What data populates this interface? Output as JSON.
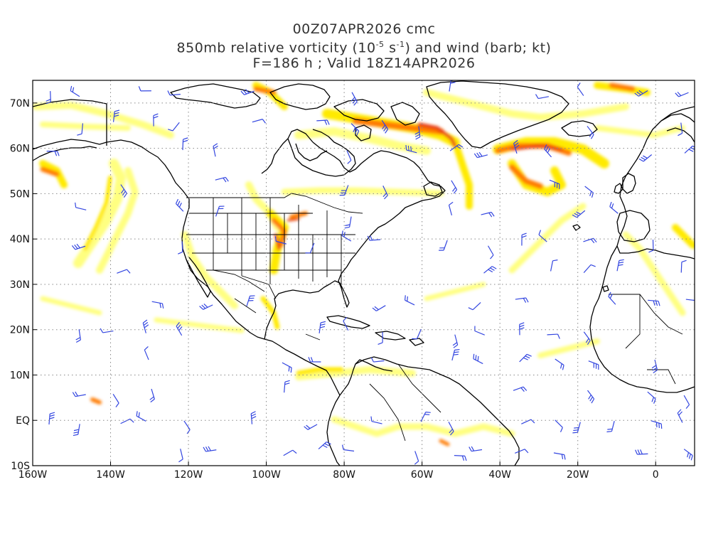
{
  "title": {
    "line1": "00Z07APR2026 cmc",
    "line2_pre": "850mb relative vorticity (10",
    "line2_exp1": "-5",
    "line2_mid": " s",
    "line2_exp2": "-1",
    "line2_post": ") and wind (barb; kt)",
    "line3": "F=186 h ; Valid 18Z14APR2026"
  },
  "axes": {
    "x_ticks": [
      "160W",
      "140W",
      "120W",
      "100W",
      "80W",
      "60W",
      "40W",
      "20W",
      "0"
    ],
    "y_ticks": [
      "70N",
      "60N",
      "50N",
      "40N",
      "30N",
      "20N",
      "10N",
      "EQ",
      "10S"
    ]
  },
  "colors": {
    "light_yellow": "#ffff80",
    "yellow": "#ffea00",
    "orange": "#ffb000",
    "dark_orange": "#ff7a00",
    "red": "#e83a10",
    "coast": "#000000",
    "barb": "#3346e0",
    "grid": "#888888"
  },
  "grid": "dotted"
}
